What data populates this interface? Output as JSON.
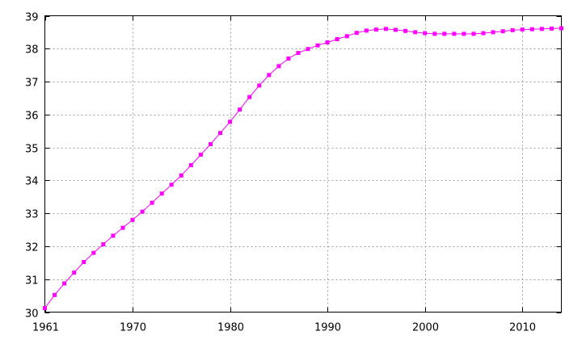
{
  "chart_data": {
    "type": "line",
    "title": "",
    "xlabel": "",
    "ylabel": "",
    "xlim": [
      1961,
      2014
    ],
    "ylim": [
      30,
      39
    ],
    "grid": true,
    "legend": "none",
    "colors": {
      "series": "#ff00ff",
      "grid": "#a0a0a0",
      "axes": "#000000"
    },
    "x_ticks": [
      1961,
      1970,
      1980,
      1990,
      2000,
      2010
    ],
    "y_ticks": [
      30,
      31,
      32,
      33,
      34,
      35,
      36,
      37,
      38,
      39
    ],
    "series": [
      {
        "x": [
          1961,
          1962,
          1963,
          1964,
          1965,
          1966,
          1967,
          1968,
          1969,
          1970,
          1971,
          1972,
          1973,
          1974,
          1975,
          1976,
          1977,
          1978,
          1979,
          1980,
          1981,
          1982,
          1983,
          1984,
          1985,
          1986,
          1987,
          1988,
          1989,
          1990,
          1991,
          1992,
          1993,
          1994,
          1995,
          1996,
          1997,
          1998,
          1999,
          2000,
          2001,
          2002,
          2003,
          2004,
          2005,
          2006,
          2007,
          2008,
          2009,
          2010,
          2011,
          2012,
          2013,
          2014
        ],
        "values": [
          30.12,
          30.52,
          30.87,
          31.2,
          31.52,
          31.8,
          32.06,
          32.32,
          32.56,
          32.8,
          33.05,
          33.32,
          33.6,
          33.87,
          34.15,
          34.46,
          34.78,
          35.1,
          35.44,
          35.78,
          36.15,
          36.53,
          36.88,
          37.2,
          37.47,
          37.7,
          37.87,
          37.99,
          38.1,
          38.19,
          38.29,
          38.38,
          38.48,
          38.55,
          38.58,
          38.6,
          38.57,
          38.54,
          38.5,
          38.47,
          38.45,
          38.45,
          38.45,
          38.45,
          38.45,
          38.47,
          38.5,
          38.53,
          38.56,
          38.58,
          38.59,
          38.6,
          38.61,
          38.62
        ]
      }
    ]
  }
}
